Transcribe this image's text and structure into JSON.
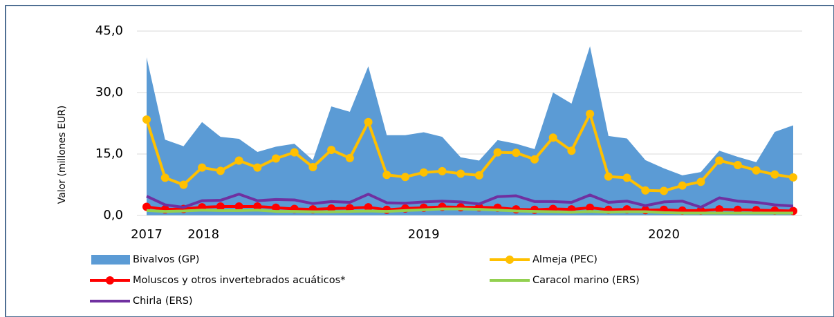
{
  "chart_data": {
    "type": "area-line",
    "y_label": "Valor (millones EUR)",
    "categories": [
      "2017",
      null,
      null,
      "2018",
      null,
      null,
      null,
      null,
      null,
      null,
      null,
      null,
      null,
      null,
      null,
      "2019",
      null,
      null,
      null,
      null,
      null,
      null,
      null,
      null,
      null,
      null,
      null,
      null,
      "2020",
      null,
      null,
      null,
      null,
      null,
      null,
      null
    ],
    "ylim": [
      0,
      45
    ],
    "yticks": [
      {
        "value": 0,
        "label": "0,0"
      },
      {
        "value": 15,
        "label": "15,0"
      },
      {
        "value": 30,
        "label": "30,0"
      },
      {
        "value": 45,
        "label": "45,0"
      }
    ],
    "grid": true,
    "series": [
      {
        "name": "Bivalvos (GP)",
        "type": "area",
        "color": "#5b9bd5",
        "values": [
          38.6,
          18.5,
          16.9,
          22.8,
          19.2,
          18.7,
          15.5,
          16.8,
          17.5,
          13.5,
          26.6,
          25.3,
          36.4,
          19.6,
          19.6,
          20.3,
          19.2,
          14.2,
          13.4,
          18.4,
          17.5,
          16.2,
          30,
          27.3,
          41.3,
          19.4,
          18.8,
          13.5,
          11.5,
          9.8,
          10.6,
          15.8,
          14.3,
          13,
          20.4,
          22
        ]
      },
      {
        "name": "Almeja (PEC)",
        "type": "line",
        "marker": true,
        "color": "#ffc000",
        "values": [
          23.4,
          9.2,
          7.5,
          11.7,
          10.9,
          13.4,
          11.7,
          13.9,
          15.4,
          11.8,
          16,
          14,
          22.8,
          9.9,
          9.4,
          10.5,
          10.8,
          10.2,
          9.8,
          15.4,
          15.3,
          13.7,
          19,
          15.8,
          24.8,
          9.5,
          9.2,
          6.1,
          6,
          7.3,
          8.2,
          13.4,
          12.3,
          11,
          10,
          9.3
        ]
      },
      {
        "name": "Moluscos y otros invertebrados acuáticos*",
        "type": "line",
        "marker": true,
        "color": "#ff0000",
        "values": [
          2.1,
          1.5,
          1.6,
          2,
          2.2,
          2.2,
          2.2,
          1.9,
          1.6,
          1.5,
          1.7,
          1.8,
          2,
          1.4,
          1.7,
          1.9,
          2.1,
          2,
          2,
          1.9,
          1.5,
          1.4,
          1.6,
          1.5,
          1.9,
          1.4,
          1.5,
          1.3,
          1.4,
          1.2,
          1.2,
          1.5,
          1.4,
          1.3,
          1.2,
          1.1
        ]
      },
      {
        "name": "Caracol marino (ERS)",
        "type": "line",
        "marker": false,
        "color": "#92d050",
        "values": [
          1.2,
          1,
          1.1,
          1.3,
          1.2,
          1.2,
          1.3,
          1,
          1,
          0.9,
          0.9,
          1,
          1.1,
          1,
          1.2,
          1.4,
          1.6,
          1.6,
          1.5,
          1.3,
          1.1,
          1,
          0.9,
          0.8,
          1,
          0.8,
          0.9,
          0.9,
          0.7,
          0.6,
          0.6,
          0.6,
          0.6,
          0.6,
          0.6,
          0.6
        ]
      },
      {
        "name": "Chirla (ERS)",
        "type": "line",
        "marker": false,
        "color": "#7030a0",
        "values": [
          4.7,
          2.6,
          2,
          3.6,
          3.7,
          5.2,
          3.6,
          3.9,
          3.8,
          2.9,
          3.4,
          3.2,
          5.2,
          3.1,
          3,
          3.3,
          3.5,
          3.3,
          2.8,
          4.6,
          4.8,
          3.4,
          3.4,
          3.2,
          5,
          3.2,
          3.5,
          2.4,
          3.3,
          3.5,
          2,
          4.3,
          3.5,
          3.2,
          2.6,
          2.3
        ]
      }
    ]
  }
}
